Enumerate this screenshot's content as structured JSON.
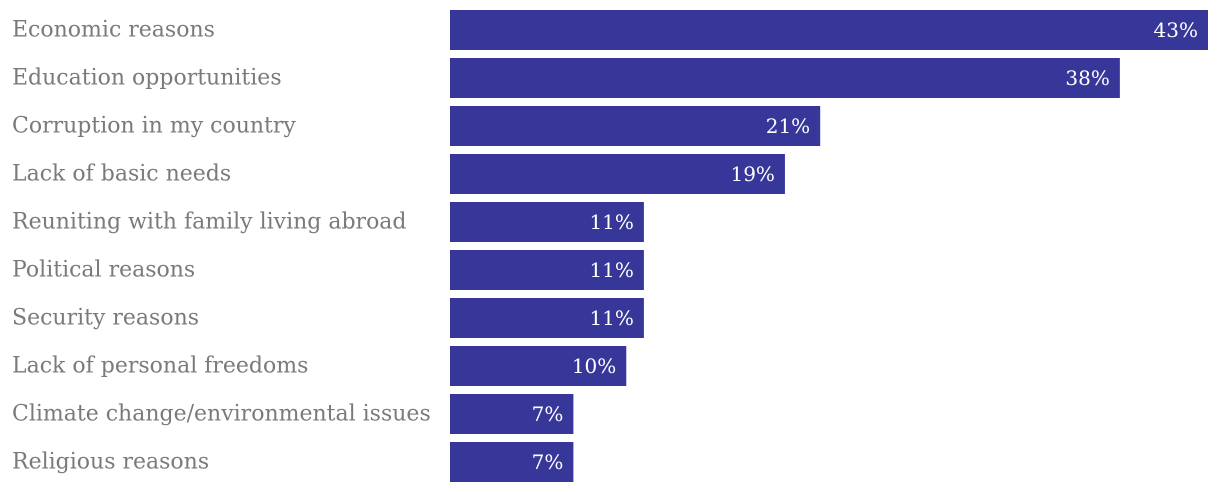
{
  "chart_data": {
    "type": "bar",
    "orientation": "horizontal",
    "title": "",
    "xlabel": "",
    "ylabel": "",
    "categories": [
      "Economic reasons",
      "Education opportunities",
      "Corruption in my country",
      "Lack of basic needs",
      "Reuniting with family living abroad",
      "Political reasons",
      "Security reasons",
      "Lack of personal freedoms",
      "Climate change/environmental issues",
      "Religious reasons"
    ],
    "values": [
      43,
      38,
      21,
      19,
      11,
      11,
      11,
      10,
      7,
      7
    ],
    "value_labels": [
      "43%",
      "38%",
      "21%",
      "19%",
      "11%",
      "11%",
      "11%",
      "10%",
      "7%",
      "7%"
    ],
    "xlim": [
      0,
      43
    ],
    "grid": false,
    "bar_color": "#363799",
    "label_color": "#7a7a7a",
    "value_label_color": "#ffffff"
  }
}
